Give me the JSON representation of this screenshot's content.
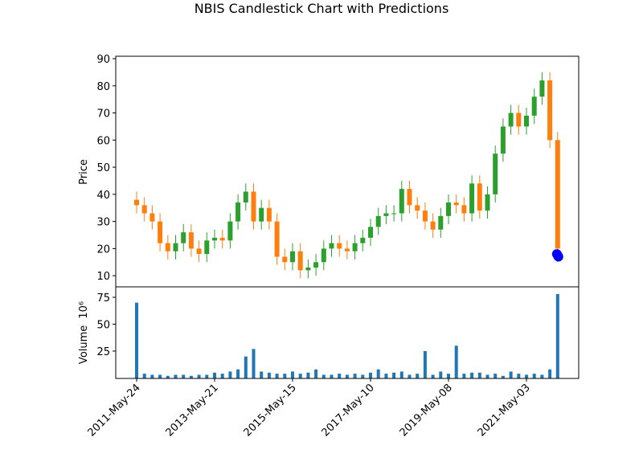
{
  "title": "NBIS Candlestick Chart with Predictions",
  "chart_data": [
    {
      "type": "candlestick",
      "ylabel": "Price",
      "x": [
        0,
        50,
        100,
        150,
        200,
        250,
        300,
        350,
        400,
        450,
        500,
        550,
        600,
        650,
        700,
        750,
        800,
        850,
        900,
        950,
        1000,
        1050,
        1100,
        1150,
        1200,
        1250,
        1300,
        1350,
        1400,
        1450,
        1500,
        1550,
        1600,
        1650,
        1700,
        1750,
        1800,
        1850,
        1900,
        1950,
        2000,
        2050,
        2100,
        2150,
        2200,
        2250,
        2300,
        2350,
        2400,
        2450,
        2500,
        2550,
        2600,
        2650,
        2700
      ],
      "open": [
        38,
        36,
        33,
        30,
        22,
        19,
        22,
        26,
        20,
        18,
        23,
        24,
        23,
        30,
        37,
        41,
        30,
        35,
        30,
        17,
        15,
        19,
        12,
        13,
        15,
        20,
        22,
        20,
        19,
        22,
        24,
        28,
        32,
        33,
        33,
        42,
        36,
        34,
        30,
        27,
        32,
        37,
        36,
        33,
        44,
        34,
        40,
        55,
        65,
        70,
        65,
        69,
        76,
        82,
        60
      ],
      "high": [
        41,
        39,
        36,
        33,
        25,
        25,
        29,
        29,
        23,
        26,
        27,
        27,
        33,
        40,
        44,
        44,
        38,
        38,
        33,
        20,
        22,
        22,
        16,
        18,
        23,
        25,
        25,
        23,
        25,
        27,
        31,
        35,
        36,
        36,
        45,
        45,
        39,
        37,
        33,
        35,
        40,
        40,
        39,
        47,
        47,
        43,
        58,
        68,
        73,
        73,
        72,
        79,
        85,
        85,
        63
      ],
      "low": [
        33,
        30,
        27,
        19,
        16,
        16,
        19,
        17,
        15,
        15,
        20,
        20,
        20,
        27,
        34,
        27,
        27,
        27,
        14,
        12,
        12,
        9,
        9,
        10,
        12,
        17,
        17,
        16,
        16,
        19,
        21,
        25,
        29,
        30,
        30,
        33,
        31,
        27,
        24,
        24,
        29,
        33,
        30,
        30,
        31,
        31,
        37,
        52,
        62,
        62,
        62,
        66,
        73,
        57,
        15
      ],
      "close": [
        36,
        33,
        30,
        22,
        19,
        22,
        26,
        20,
        18,
        23,
        24,
        23,
        30,
        37,
        41,
        30,
        35,
        30,
        17,
        15,
        19,
        12,
        13,
        15,
        20,
        22,
        20,
        19,
        22,
        24,
        28,
        32,
        33,
        33,
        42,
        36,
        34,
        30,
        27,
        32,
        37,
        36,
        33,
        44,
        34,
        40,
        55,
        65,
        70,
        65,
        69,
        76,
        82,
        60,
        20
      ],
      "up_color": "#2ca02c",
      "down_color": "#ff7f0e",
      "predictions": {
        "x": [
          2695,
          2700,
          2705
        ],
        "values": [
          18,
          17.5,
          17
        ],
        "color": "#0000ff"
      },
      "xlim": [
        -134,
        2835
      ],
      "ylim": [
        5.9,
        90.9
      ],
      "yticks": [
        10,
        20,
        30,
        40,
        50,
        60,
        70,
        80,
        90
      ]
    },
    {
      "type": "bar",
      "ylabel": "Volume",
      "offset_label": "10⁶",
      "x": [
        0,
        50,
        100,
        150,
        200,
        250,
        300,
        350,
        400,
        450,
        500,
        550,
        600,
        650,
        700,
        750,
        800,
        850,
        900,
        950,
        1000,
        1050,
        1100,
        1150,
        1200,
        1250,
        1300,
        1350,
        1400,
        1450,
        1500,
        1550,
        1600,
        1650,
        1700,
        1750,
        1800,
        1850,
        1900,
        1950,
        2000,
        2050,
        2100,
        2150,
        2200,
        2250,
        2300,
        2350,
        2400,
        2450,
        2500,
        2550,
        2600,
        2650,
        2700
      ],
      "values": [
        70,
        4,
        3,
        3,
        2,
        3,
        3,
        2,
        3,
        3,
        5,
        4,
        6,
        8,
        20,
        27,
        6,
        5,
        4,
        4,
        6,
        4,
        5,
        8,
        3,
        3,
        4,
        3,
        4,
        3,
        5,
        8,
        4,
        5,
        6,
        3,
        4,
        25,
        3,
        6,
        4,
        30,
        4,
        5,
        5,
        3,
        4,
        2,
        6,
        4,
        3,
        4,
        3,
        8,
        78
      ],
      "color": "#1f77b4",
      "xlim": [
        -134,
        2835
      ],
      "ylim": [
        -0.4,
        84.7
      ],
      "yticks": [
        25,
        50,
        75
      ],
      "xticks": [
        {
          "value": 0,
          "label": "2011-May-24"
        },
        {
          "value": 500,
          "label": "2013-May-21"
        },
        {
          "value": 1000,
          "label": "2015-May-15"
        },
        {
          "value": 1500,
          "label": "2017-May-10"
        },
        {
          "value": 2000,
          "label": "2019-May-08"
        },
        {
          "value": 2500,
          "label": "2021-May-03"
        }
      ]
    }
  ]
}
